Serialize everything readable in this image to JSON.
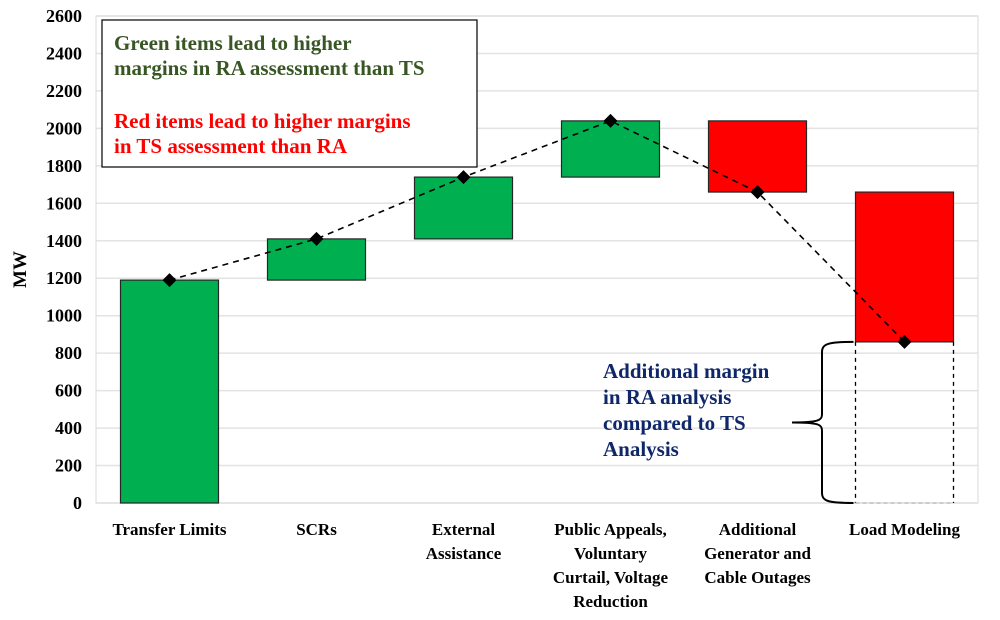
{
  "chart_data": {
    "type": "waterfall",
    "title": "",
    "xlabel": "",
    "ylabel": "MW",
    "ylim": [
      0,
      2600
    ],
    "yticks": [
      0,
      200,
      400,
      600,
      800,
      1000,
      1200,
      1400,
      1600,
      1800,
      2000,
      2200,
      2400,
      2600
    ],
    "grid": true,
    "categories": [
      [
        "Transfer Limits"
      ],
      [
        "SCRs"
      ],
      [
        "External",
        "Assistance"
      ],
      [
        "Public Appeals,",
        "Voluntary",
        "Curtail, Voltage",
        "Reduction"
      ],
      [
        "Additional",
        "Generator and",
        "Cable Outages"
      ],
      [
        "Load Modeling"
      ]
    ],
    "bars": [
      {
        "start": 0,
        "end": 1190,
        "color": "green"
      },
      {
        "start": 1190,
        "end": 1410,
        "color": "green"
      },
      {
        "start": 1410,
        "end": 1740,
        "color": "green"
      },
      {
        "start": 1740,
        "end": 2040,
        "color": "green"
      },
      {
        "start": 2040,
        "end": 1660,
        "color": "red"
      },
      {
        "start": 1660,
        "end": 860,
        "color": "red"
      }
    ],
    "cumulative_line": [
      1190,
      1410,
      1740,
      2040,
      1660,
      860
    ],
    "residual_box": {
      "category_index": 5,
      "start": 0,
      "end": 860
    },
    "legend_box": {
      "green_text": [
        "Green items lead to higher",
        "margins in RA assessment than TS"
      ],
      "red_text": [
        "Red items lead to higher margins",
        "in TS assessment than RA"
      ]
    },
    "annotation": {
      "text": [
        "Additional margin",
        "in RA analysis",
        "compared to TS",
        "Analysis"
      ]
    },
    "colors": {
      "green": "#00B050",
      "red": "#FF0000",
      "green_text": "#375623",
      "red_text": "#FF0000",
      "annotation_text": "#0F2769",
      "grid": "#E3E3E3"
    }
  }
}
